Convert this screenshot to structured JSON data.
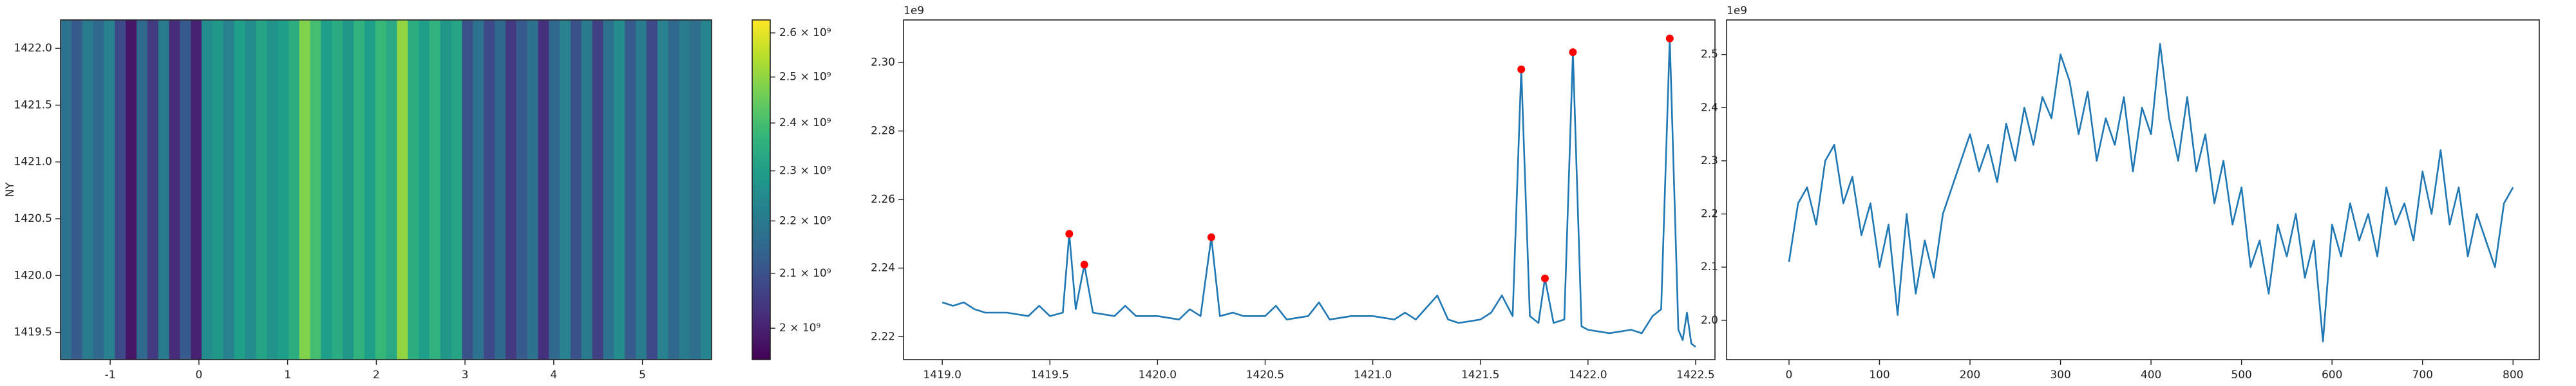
{
  "chart_data": [
    {
      "type": "heatmap",
      "ylabel": "NY",
      "xlim": [
        -1.56,
        5.78
      ],
      "ylim": [
        1419.26,
        1422.25
      ],
      "xticks": [
        -1,
        0,
        1,
        2,
        3,
        4,
        5
      ],
      "yticks": [
        1419.5,
        {
          "value": 1420,
          "label": "1420.0"
        },
        1420.5,
        {
          "value": 1421,
          "label": "1421.0"
        },
        1421.5,
        {
          "value": 1422,
          "label": "1422.0"
        }
      ],
      "colormap": "viridis",
      "colorbar": {
        "scale": "log",
        "lim": [
          1945000000.0,
          2630000000.0
        ],
        "ticks": [
          {
            "value": 2000000000.0,
            "label": "2 × 10⁹"
          },
          {
            "value": 2100000000.0,
            "label": "2.1 × 10⁹"
          },
          {
            "value": 2200000000.0,
            "label": "2.2 × 10⁹"
          },
          {
            "value": 2300000000.0,
            "label": "2.3 × 10⁹"
          },
          {
            "value": 2400000000.0,
            "label": "2.4 × 10⁹"
          },
          {
            "value": 2500000000.0,
            "label": "2.5 × 10⁹"
          },
          {
            "value": 2600000000.0,
            "label": "2.6 × 10⁹"
          }
        ]
      },
      "values": [
        2180000000.0,
        2120000000.0,
        2200000000.0,
        2150000000.0,
        2220000000.0,
        2080000000.0,
        1980000000.0,
        2150000000.0,
        2050000000.0,
        2200000000.0,
        2020000000.0,
        2120000000.0,
        2000000000.0,
        2250000000.0,
        2280000000.0,
        2220000000.0,
        2300000000.0,
        2250000000.0,
        2320000000.0,
        2270000000.0,
        2300000000.0,
        2350000000.0,
        2480000000.0,
        2400000000.0,
        2300000000.0,
        2340000000.0,
        2280000000.0,
        2360000000.0,
        2300000000.0,
        2380000000.0,
        2330000000.0,
        2500000000.0,
        2350000000.0,
        2300000000.0,
        2360000000.0,
        2280000000.0,
        2320000000.0,
        2100000000.0,
        2180000000.0,
        2080000000.0,
        2150000000.0,
        2050000000.0,
        2120000000.0,
        2180000000.0,
        2030000000.0,
        2150000000.0,
        2220000000.0,
        2100000000.0,
        2200000000.0,
        2060000000.0,
        2180000000.0,
        2250000000.0,
        2120000000.0,
        2200000000.0,
        2080000000.0,
        2220000000.0,
        2150000000.0,
        2200000000.0,
        2170000000.0,
        2230000000.0
      ]
    },
    {
      "type": "line",
      "offset_label": "1e9",
      "xlim": [
        1418.82,
        1422.59
      ],
      "ylim": [
        2.2133,
        2.3124
      ],
      "xticks": [
        {
          "value": 1419,
          "label": "1419.0"
        },
        1419.5,
        {
          "value": 1420,
          "label": "1420.0"
        },
        1420.5,
        {
          "value": 1421,
          "label": "1421.0"
        },
        1421.5,
        {
          "value": 1422,
          "label": "1422.0"
        },
        1422.5
      ],
      "yticks": [
        2.22,
        2.24,
        2.26,
        2.28,
        {
          "value": 2.3,
          "label": "2.30"
        }
      ],
      "series": [
        {
          "color": "#1f77b4",
          "marker": "none",
          "x": [
            1419.0,
            1419.05,
            1419.1,
            1419.15,
            1419.2,
            1419.3,
            1419.4,
            1419.45,
            1419.5,
            1419.56,
            1419.59,
            1419.62,
            1419.66,
            1419.7,
            1419.8,
            1419.85,
            1419.9,
            1420.0,
            1420.1,
            1420.15,
            1420.2,
            1420.25,
            1420.29,
            1420.35,
            1420.4,
            1420.5,
            1420.55,
            1420.6,
            1420.7,
            1420.75,
            1420.8,
            1420.9,
            1421.0,
            1421.1,
            1421.15,
            1421.2,
            1421.3,
            1421.35,
            1421.4,
            1421.5,
            1421.55,
            1421.6,
            1421.65,
            1421.69,
            1421.73,
            1421.77,
            1421.8,
            1421.84,
            1421.89,
            1421.93,
            1421.97,
            1422.0,
            1422.1,
            1422.2,
            1422.25,
            1422.3,
            1422.34,
            1422.38,
            1422.42,
            1422.44,
            1422.46,
            1422.48,
            1422.5
          ],
          "values": [
            2.23,
            2.229,
            2.23,
            2.228,
            2.227,
            2.227,
            2.226,
            2.229,
            2.226,
            2.227,
            2.25,
            2.228,
            2.241,
            2.227,
            2.226,
            2.229,
            2.226,
            2.226,
            2.225,
            2.228,
            2.226,
            2.249,
            2.226,
            2.227,
            2.226,
            2.226,
            2.229,
            2.225,
            2.226,
            2.23,
            2.225,
            2.226,
            2.226,
            2.225,
            2.227,
            2.225,
            2.232,
            2.225,
            2.224,
            2.225,
            2.227,
            2.232,
            2.226,
            2.298,
            2.226,
            2.224,
            2.237,
            2.224,
            2.225,
            2.303,
            2.223,
            2.222,
            2.221,
            2.222,
            2.221,
            2.226,
            2.228,
            2.307,
            2.222,
            2.219,
            2.227,
            2.218,
            2.217
          ]
        },
        {
          "color": "#ff0000",
          "marker": "dot",
          "x": [
            1419.59,
            1419.66,
            1420.25,
            1421.69,
            1421.8,
            1421.93,
            1422.38
          ],
          "values": [
            2.25,
            2.241,
            2.249,
            2.298,
            2.237,
            2.303,
            2.307
          ]
        }
      ]
    },
    {
      "type": "line",
      "offset_label": "1e9",
      "xlim": [
        -69,
        829
      ],
      "ylim": [
        1.926,
        2.565
      ],
      "xticks": [
        0,
        100,
        200,
        300,
        400,
        500,
        600,
        700,
        800
      ],
      "yticks": [
        {
          "value": 2,
          "label": "2.0"
        },
        2.1,
        2.2,
        2.3,
        2.4,
        2.5
      ],
      "series": [
        {
          "color": "#1f77b4",
          "marker": "none",
          "x": [
            0,
            10,
            20,
            30,
            40,
            50,
            60,
            70,
            80,
            90,
            100,
            110,
            120,
            130,
            140,
            150,
            160,
            170,
            180,
            190,
            200,
            210,
            220,
            230,
            240,
            250,
            260,
            270,
            280,
            290,
            300,
            310,
            320,
            330,
            340,
            350,
            360,
            370,
            380,
            390,
            400,
            410,
            420,
            430,
            440,
            450,
            460,
            470,
            480,
            490,
            500,
            510,
            520,
            530,
            540,
            550,
            560,
            570,
            580,
            590,
            600,
            610,
            620,
            630,
            640,
            650,
            660,
            670,
            680,
            690,
            700,
            710,
            720,
            730,
            740,
            750,
            760,
            770,
            780,
            790,
            800
          ],
          "values": [
            2.11,
            2.22,
            2.25,
            2.18,
            2.3,
            2.33,
            2.22,
            2.27,
            2.16,
            2.22,
            2.1,
            2.18,
            2.01,
            2.2,
            2.05,
            2.15,
            2.08,
            2.2,
            2.25,
            2.3,
            2.35,
            2.28,
            2.33,
            2.26,
            2.37,
            2.3,
            2.4,
            2.33,
            2.42,
            2.38,
            2.5,
            2.45,
            2.35,
            2.43,
            2.3,
            2.38,
            2.33,
            2.42,
            2.28,
            2.4,
            2.35,
            2.52,
            2.38,
            2.3,
            2.42,
            2.28,
            2.35,
            2.22,
            2.3,
            2.18,
            2.25,
            2.1,
            2.15,
            2.05,
            2.18,
            2.12,
            2.2,
            2.08,
            2.15,
            1.96,
            2.18,
            2.12,
            2.22,
            2.15,
            2.2,
            2.12,
            2.25,
            2.18,
            2.22,
            2.15,
            2.28,
            2.2,
            2.32,
            2.18,
            2.25,
            2.12,
            2.2,
            2.15,
            2.1,
            2.22,
            2.25
          ]
        }
      ]
    }
  ]
}
